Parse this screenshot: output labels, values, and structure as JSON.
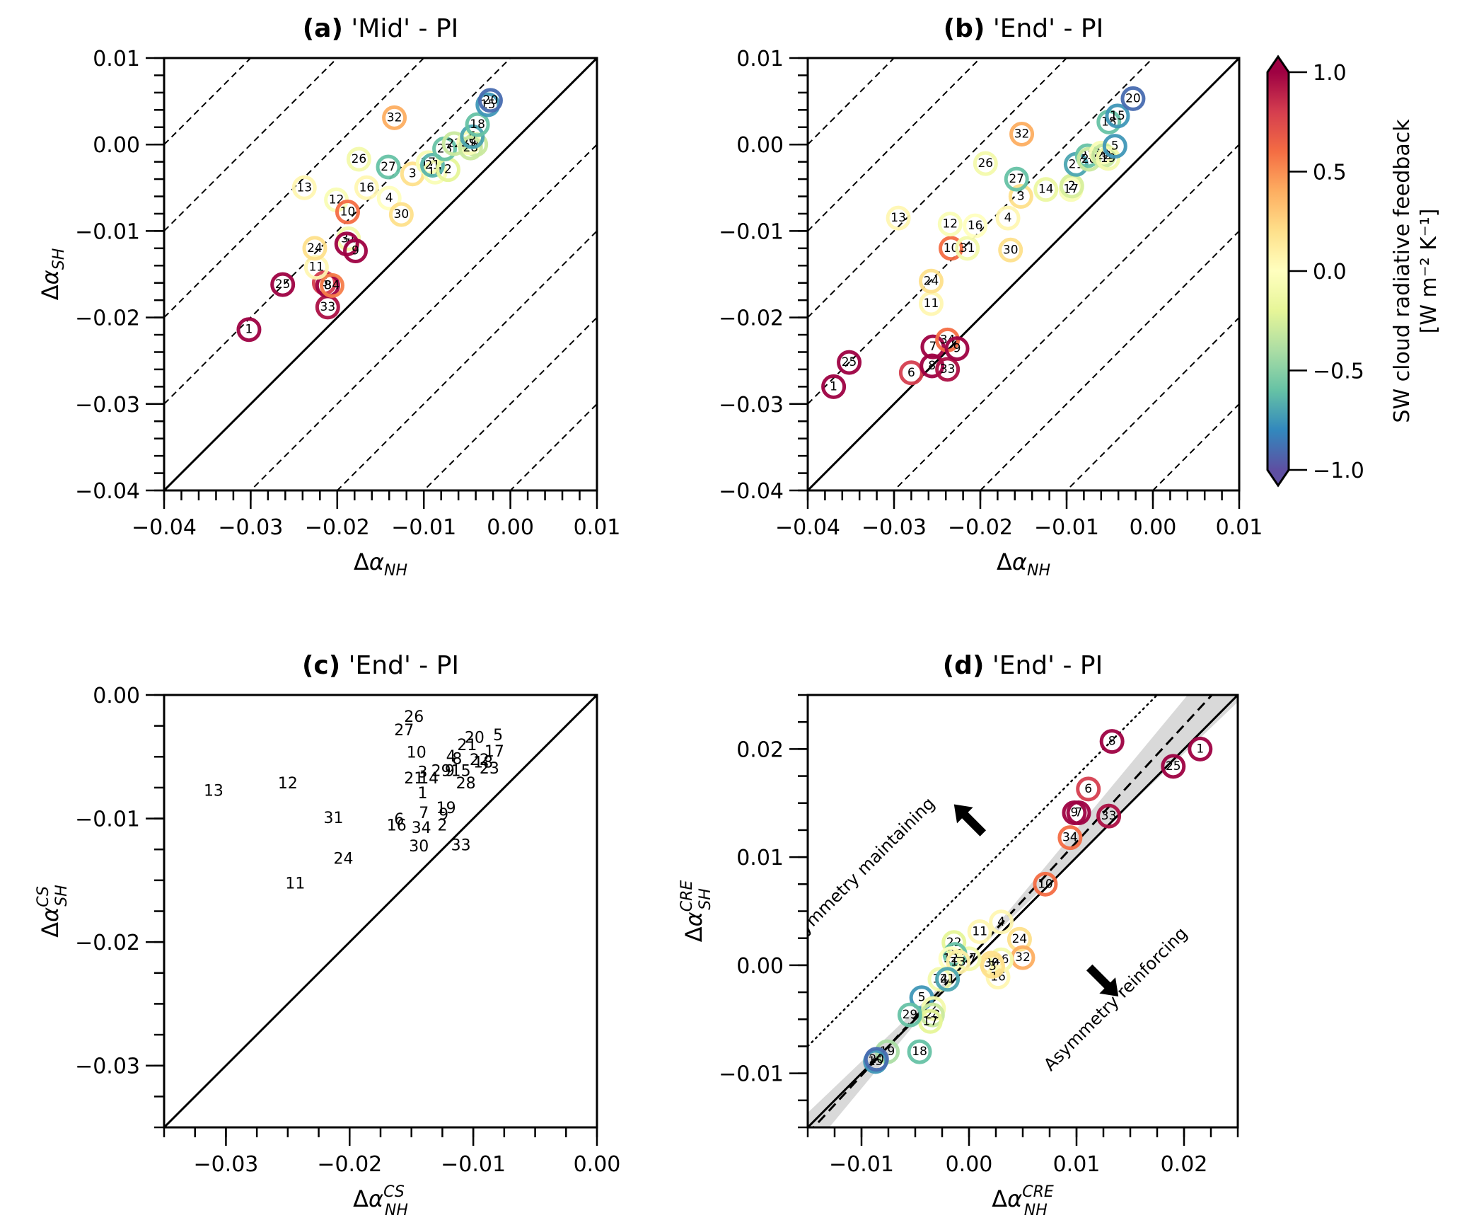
{
  "colorbar": {
    "label_line1": "SW cloud radiative feedback",
    "label_line2": "[W m⁻² K⁻¹]",
    "range": [
      -1.0,
      1.0
    ],
    "ticks": [
      "1.0",
      "0.5",
      "0.0",
      "−0.5",
      "−1.0"
    ],
    "tick_values": [
      1.0,
      0.5,
      0.0,
      -0.5,
      -1.0
    ],
    "colormap": "Spectral_r",
    "extend": "both"
  },
  "chart_data": [
    {
      "id": "a",
      "type": "scatter",
      "title_bold": "(a)",
      "title_rest": " 'Mid' - PI",
      "xlabel": "Δα_NH",
      "ylabel": "Δα_SH",
      "xlim": [
        -0.04,
        0.01
      ],
      "ylim": [
        -0.04,
        0.01
      ],
      "xticks": [
        -0.04,
        -0.03,
        -0.02,
        -0.01,
        0.0,
        0.01
      ],
      "xtick_labels": [
        "−0.04",
        "−0.03",
        "−0.02",
        "−0.01",
        "0.00",
        "0.01"
      ],
      "yticks": [
        -0.04,
        -0.03,
        -0.02,
        -0.01,
        0.0,
        0.01
      ],
      "ytick_labels": [
        "−0.04",
        "−0.03",
        "−0.02",
        "−0.01",
        "0.00",
        "0.01"
      ],
      "one_to_one_line": true,
      "dashed_offsets": [
        -0.04,
        -0.03,
        -0.02,
        -0.01,
        0.01,
        0.02,
        0.03,
        0.04
      ],
      "marker": "ring",
      "points": [
        {
          "label": "1",
          "x": -0.0302,
          "y": -0.0214,
          "c": 1.0
        },
        {
          "label": "25",
          "x": -0.0263,
          "y": -0.0162,
          "c": 1.0
        },
        {
          "label": "33",
          "x": -0.0211,
          "y": -0.0188,
          "c": 0.95
        },
        {
          "label": "6",
          "x": -0.0215,
          "y": -0.016,
          "c": 0.8
        },
        {
          "label": "8",
          "x": -0.0211,
          "y": -0.0163,
          "c": 1.0
        },
        {
          "label": "34",
          "x": -0.0206,
          "y": -0.0163,
          "c": 0.55
        },
        {
          "label": "11",
          "x": -0.0224,
          "y": -0.0142,
          "c": 0.05
        },
        {
          "label": "24",
          "x": -0.0226,
          "y": -0.012,
          "c": 0.2
        },
        {
          "label": "31",
          "x": -0.0187,
          "y": -0.0109,
          "c": -0.1
        },
        {
          "label": "7",
          "x": -0.0189,
          "y": -0.0115,
          "c": 1.0
        },
        {
          "label": "9",
          "x": -0.0179,
          "y": -0.0123,
          "c": 1.0
        },
        {
          "label": "12",
          "x": -0.0201,
          "y": -0.0064,
          "c": -0.05
        },
        {
          "label": "10",
          "x": -0.0188,
          "y": -0.0078,
          "c": 0.6
        },
        {
          "label": "13",
          "x": -0.0238,
          "y": -0.005,
          "c": 0.05
        },
        {
          "label": "16",
          "x": -0.0166,
          "y": -0.005,
          "c": 0.05
        },
        {
          "label": "4",
          "x": -0.014,
          "y": -0.0062,
          "c": 0.0
        },
        {
          "label": "30",
          "x": -0.0126,
          "y": -0.0081,
          "c": 0.2
        },
        {
          "label": "26",
          "x": -0.0175,
          "y": -0.0017,
          "c": -0.1
        },
        {
          "label": "27",
          "x": -0.0141,
          "y": -0.0026,
          "c": -0.6
        },
        {
          "label": "3",
          "x": -0.0113,
          "y": -0.0034,
          "c": 0.2
        },
        {
          "label": "32",
          "x": -0.0134,
          "y": 0.0031,
          "c": 0.4
        },
        {
          "label": "17",
          "x": -0.0095,
          "y": -0.0021,
          "c": -0.05
        },
        {
          "label": "14",
          "x": -0.0087,
          "y": -0.0032,
          "c": -0.05
        },
        {
          "label": "21",
          "x": -0.009,
          "y": -0.0024,
          "c": -0.65
        },
        {
          "label": "2",
          "x": -0.0072,
          "y": -0.0029,
          "c": -0.2
        },
        {
          "label": "23",
          "x": -0.0076,
          "y": -0.0005,
          "c": -0.6
        },
        {
          "label": "22",
          "x": -0.0065,
          "y": 0.0001,
          "c": -0.3
        },
        {
          "label": "19",
          "x": -0.004,
          "y": 0.0,
          "c": -0.3
        },
        {
          "label": "29",
          "x": -0.0048,
          "y": 0.0002,
          "c": -0.05
        },
        {
          "label": "28",
          "x": -0.0046,
          "y": -0.0004,
          "c": -0.3
        },
        {
          "label": "5",
          "x": -0.0044,
          "y": 0.0009,
          "c": -0.7
        },
        {
          "label": "18",
          "x": -0.0038,
          "y": 0.0023,
          "c": -0.6
        },
        {
          "label": "15",
          "x": -0.0026,
          "y": 0.0046,
          "c": -0.75
        },
        {
          "label": "20",
          "x": -0.0023,
          "y": 0.0051,
          "c": -0.9
        }
      ]
    },
    {
      "id": "b",
      "type": "scatter",
      "title_bold": "(b)",
      "title_rest": " 'End' - PI",
      "xlabel": "Δα_NH",
      "ylabel": "",
      "xlim": [
        -0.04,
        0.01
      ],
      "ylim": [
        -0.04,
        0.01
      ],
      "xticks": [
        -0.04,
        -0.03,
        -0.02,
        -0.01,
        0.0,
        0.01
      ],
      "xtick_labels": [
        "−0.04",
        "−0.03",
        "−0.02",
        "−0.01",
        "0.00",
        "0.01"
      ],
      "yticks": [
        -0.04,
        -0.03,
        -0.02,
        -0.01,
        0.0,
        0.01
      ],
      "ytick_labels": [
        "−0.04",
        "−0.03",
        "−0.02",
        "−0.01",
        "0.00",
        "0.01"
      ],
      "one_to_one_line": true,
      "dashed_offsets": [
        -0.04,
        -0.03,
        -0.02,
        -0.01,
        0.01,
        0.02,
        0.03,
        0.04
      ],
      "marker": "ring",
      "points": [
        {
          "label": "1",
          "x": -0.037,
          "y": -0.028,
          "c": 1.0
        },
        {
          "label": "25",
          "x": -0.0352,
          "y": -0.0252,
          "c": 1.0
        },
        {
          "label": "6",
          "x": -0.028,
          "y": -0.0264,
          "c": 0.8
        },
        {
          "label": "8",
          "x": -0.0256,
          "y": -0.0256,
          "c": 1.0
        },
        {
          "label": "33",
          "x": -0.0238,
          "y": -0.026,
          "c": 0.95
        },
        {
          "label": "7",
          "x": -0.0255,
          "y": -0.0234,
          "c": 1.0
        },
        {
          "label": "34",
          "x": -0.0238,
          "y": -0.0226,
          "c": 0.6
        },
        {
          "label": "9",
          "x": -0.0227,
          "y": -0.0236,
          "c": 1.0
        },
        {
          "label": "11",
          "x": -0.0257,
          "y": -0.0184,
          "c": 0.05
        },
        {
          "label": "24",
          "x": -0.0257,
          "y": -0.0158,
          "c": 0.2
        },
        {
          "label": "10",
          "x": -0.0234,
          "y": -0.012,
          "c": 0.6
        },
        {
          "label": "31",
          "x": -0.0215,
          "y": -0.012,
          "c": -0.1
        },
        {
          "label": "30",
          "x": -0.0165,
          "y": -0.0122,
          "c": 0.2
        },
        {
          "label": "12",
          "x": -0.0235,
          "y": -0.0092,
          "c": -0.05
        },
        {
          "label": "16",
          "x": -0.0206,
          "y": -0.0094,
          "c": 0.0
        },
        {
          "label": "4",
          "x": -0.0168,
          "y": -0.0085,
          "c": 0.05
        },
        {
          "label": "13",
          "x": -0.0295,
          "y": -0.0085,
          "c": 0.05
        },
        {
          "label": "3",
          "x": -0.0153,
          "y": -0.006,
          "c": 0.2
        },
        {
          "label": "14",
          "x": -0.0124,
          "y": -0.0052,
          "c": -0.15
        },
        {
          "label": "17",
          "x": -0.0095,
          "y": -0.0052,
          "c": -0.05
        },
        {
          "label": "2",
          "x": -0.0094,
          "y": -0.0048,
          "c": -0.25
        },
        {
          "label": "27",
          "x": -0.0158,
          "y": -0.004,
          "c": -0.6
        },
        {
          "label": "26",
          "x": -0.0194,
          "y": -0.0022,
          "c": -0.1
        },
        {
          "label": "32",
          "x": -0.0152,
          "y": 0.0012,
          "c": 0.4
        },
        {
          "label": "21",
          "x": -0.0089,
          "y": -0.0023,
          "c": -0.7
        },
        {
          "label": "23",
          "x": -0.0076,
          "y": -0.0013,
          "c": -0.6
        },
        {
          "label": "28",
          "x": -0.0074,
          "y": -0.0017,
          "c": -0.3
        },
        {
          "label": "29",
          "x": -0.006,
          "y": -0.001,
          "c": -0.05
        },
        {
          "label": "22",
          "x": -0.0057,
          "y": -0.0013,
          "c": -0.3
        },
        {
          "label": "19",
          "x": -0.0052,
          "y": -0.0016,
          "c": -0.1
        },
        {
          "label": "5",
          "x": -0.0044,
          "y": -0.0002,
          "c": -0.75
        },
        {
          "label": "18",
          "x": -0.0051,
          "y": 0.0026,
          "c": -0.6
        },
        {
          "label": "15",
          "x": -0.0041,
          "y": 0.0033,
          "c": -0.75
        },
        {
          "label": "20",
          "x": -0.0023,
          "y": 0.0053,
          "c": -0.9
        }
      ]
    },
    {
      "id": "c",
      "type": "scatter",
      "title_bold": "(c)",
      "title_rest": " 'End' - PI",
      "xlabel": "Δα_NH^CS",
      "ylabel": "Δα_SH^CS",
      "xlim": [
        -0.035,
        0.0
      ],
      "ylim": [
        -0.035,
        0.0
      ],
      "xticks": [
        -0.03,
        -0.02,
        -0.01,
        0.0
      ],
      "xtick_labels": [
        "−0.03",
        "−0.02",
        "−0.01",
        "0.00"
      ],
      "yticks": [
        -0.03,
        -0.02,
        -0.01,
        0.0
      ],
      "ytick_labels": [
        "−0.03",
        "−0.02",
        "−0.01",
        "0.00"
      ],
      "one_to_one_line": true,
      "marker": "text",
      "points": [
        {
          "label": "13",
          "x": -0.031,
          "y": -0.0078
        },
        {
          "label": "12",
          "x": -0.025,
          "y": -0.0072
        },
        {
          "label": "31",
          "x": -0.0213,
          "y": -0.01
        },
        {
          "label": "24",
          "x": -0.0205,
          "y": -0.0133
        },
        {
          "label": "11",
          "x": -0.0244,
          "y": -0.0153
        },
        {
          "label": "26",
          "x": -0.0148,
          "y": -0.0018
        },
        {
          "label": "27",
          "x": -0.0156,
          "y": -0.0029
        },
        {
          "label": "10",
          "x": -0.0146,
          "y": -0.0047
        },
        {
          "label": "3",
          "x": -0.0141,
          "y": -0.0063
        },
        {
          "label": "21",
          "x": -0.0148,
          "y": -0.0068
        },
        {
          "label": "14",
          "x": -0.0136,
          "y": -0.0068
        },
        {
          "label": "1",
          "x": -0.0141,
          "y": -0.008
        },
        {
          "label": "29",
          "x": -0.0126,
          "y": -0.0062
        },
        {
          "label": "4",
          "x": -0.0118,
          "y": -0.005
        },
        {
          "label": "8",
          "x": -0.0113,
          "y": -0.0052
        },
        {
          "label": "9",
          "x": -0.0119,
          "y": -0.0062
        },
        {
          "label": "15",
          "x": -0.011,
          "y": -0.0062
        },
        {
          "label": "28",
          "x": -0.0106,
          "y": -0.0072
        },
        {
          "label": "21b",
          "x": -0.0105,
          "y": -0.0041
        },
        {
          "label": "20",
          "x": -0.0099,
          "y": -0.0035
        },
        {
          "label": "5",
          "x": -0.008,
          "y": -0.0033
        },
        {
          "label": "17",
          "x": -0.0083,
          "y": -0.0046
        },
        {
          "label": "22",
          "x": -0.0095,
          "y": -0.0053
        },
        {
          "label": "18",
          "x": -0.0092,
          "y": -0.0055
        },
        {
          "label": "23",
          "x": -0.0087,
          "y": -0.006
        },
        {
          "label": "19",
          "x": -0.0122,
          "y": -0.0092
        },
        {
          "label": "9b",
          "x": -0.0124,
          "y": -0.0097
        },
        {
          "label": "7",
          "x": -0.014,
          "y": -0.0096
        },
        {
          "label": "6",
          "x": -0.016,
          "y": -0.0101
        },
        {
          "label": "16",
          "x": -0.0162,
          "y": -0.0106
        },
        {
          "label": "34",
          "x": -0.0142,
          "y": -0.0108
        },
        {
          "label": "2",
          "x": -0.0125,
          "y": -0.0106
        },
        {
          "label": "30",
          "x": -0.0144,
          "y": -0.0123
        },
        {
          "label": "33",
          "x": -0.011,
          "y": -0.0122
        }
      ]
    },
    {
      "id": "d",
      "type": "scatter",
      "title_bold": "(d)",
      "title_rest": " 'End' - PI",
      "xlabel": "Δα_NH^CRE",
      "ylabel": "Δα_SH^CRE",
      "xlim": [
        -0.015,
        0.025
      ],
      "ylim": [
        -0.015,
        0.025
      ],
      "xticks": [
        -0.01,
        0.0,
        0.01,
        0.02
      ],
      "xtick_labels": [
        "−0.01",
        "0.00",
        "0.01",
        "0.02"
      ],
      "yticks": [
        -0.01,
        0.0,
        0.01,
        0.02
      ],
      "ytick_labels": [
        "−0.01",
        "0.00",
        "0.01",
        "0.02"
      ],
      "one_to_one_line": true,
      "regression_line": {
        "slope": 1.08,
        "intercept": 0.0006,
        "style": "dashed"
      },
      "confidence_band": {
        "slope_low": 0.95,
        "slope_high": 1.2,
        "intercept": 0.0006
      },
      "dotted_line": {
        "slope": 1.0,
        "offset": 0.0075
      },
      "annotations": [
        {
          "text": "Symmetry maintaining",
          "x": -0.0095,
          "y": 0.0085,
          "rotation": -45
        },
        {
          "text": "Asymmetry reinforcing",
          "x": 0.014,
          "y": -0.0035,
          "rotation": -45
        }
      ],
      "arrows": [
        {
          "direction": "up-left",
          "x": 0.0,
          "y": 0.0135
        },
        {
          "direction": "down-right",
          "x": 0.0125,
          "y": -0.0015
        }
      ],
      "marker": "ring",
      "points": [
        {
          "label": "1",
          "x": 0.0215,
          "y": 0.02,
          "c": 1.0
        },
        {
          "label": "25",
          "x": 0.019,
          "y": 0.0184,
          "c": 1.0
        },
        {
          "label": "8",
          "x": 0.0133,
          "y": 0.0207,
          "c": 1.0
        },
        {
          "label": "6",
          "x": 0.0111,
          "y": 0.0163,
          "c": 0.8
        },
        {
          "label": "9",
          "x": 0.0098,
          "y": 0.0141,
          "c": 1.0
        },
        {
          "label": "7",
          "x": 0.0102,
          "y": 0.0141,
          "c": 1.0
        },
        {
          "label": "33",
          "x": 0.013,
          "y": 0.0138,
          "c": 0.95
        },
        {
          "label": "34",
          "x": 0.0094,
          "y": 0.0118,
          "c": 0.6
        },
        {
          "label": "10",
          "x": 0.0071,
          "y": 0.0075,
          "c": 0.6
        },
        {
          "label": "4",
          "x": 0.003,
          "y": 0.004,
          "c": 0.05
        },
        {
          "label": "11",
          "x": 0.001,
          "y": 0.0031,
          "c": 0.05
        },
        {
          "label": "24",
          "x": 0.0047,
          "y": 0.0024,
          "c": 0.2
        },
        {
          "label": "32",
          "x": 0.005,
          "y": 0.0007,
          "c": 0.4
        },
        {
          "label": "26",
          "x": 0.003,
          "y": 0.0005,
          "c": -0.1
        },
        {
          "label": "30",
          "x": 0.0021,
          "y": 0.0002,
          "c": 0.2
        },
        {
          "label": "16",
          "x": 0.0027,
          "y": -0.0011,
          "c": 0.05
        },
        {
          "label": "3",
          "x": 0.0022,
          "y": -0.0001,
          "c": 0.2
        },
        {
          "label": "27",
          "x": 0.0,
          "y": 0.0006,
          "c": -0.1
        },
        {
          "label": "22",
          "x": -0.0014,
          "y": 0.0021,
          "c": -0.2
        },
        {
          "label": "23",
          "x": -0.0013,
          "y": 0.001,
          "c": -0.6
        },
        {
          "label": "12",
          "x": -0.0017,
          "y": 0.0006,
          "c": 0.0
        },
        {
          "label": "13",
          "x": -0.001,
          "y": 0.0003,
          "c": 0.1
        },
        {
          "label": "14",
          "x": -0.0027,
          "y": -0.0013,
          "c": -0.1
        },
        {
          "label": "21",
          "x": -0.002,
          "y": -0.0013,
          "c": -0.7
        },
        {
          "label": "5",
          "x": -0.0044,
          "y": -0.003,
          "c": -0.75
        },
        {
          "label": "2",
          "x": -0.0033,
          "y": -0.004,
          "c": -0.1
        },
        {
          "label": "28",
          "x": -0.0034,
          "y": -0.0046,
          "c": -0.3
        },
        {
          "label": "17",
          "x": -0.0036,
          "y": -0.0052,
          "c": -0.2
        },
        {
          "label": "29",
          "x": -0.0055,
          "y": -0.0046,
          "c": -0.6
        },
        {
          "label": "19",
          "x": -0.0076,
          "y": -0.008,
          "c": -0.4
        },
        {
          "label": "18",
          "x": -0.0046,
          "y": -0.008,
          "c": -0.6
        },
        {
          "label": "15",
          "x": -0.0087,
          "y": -0.0089,
          "c": -0.75
        },
        {
          "label": "20",
          "x": -0.0086,
          "y": -0.0087,
          "c": -0.9
        }
      ]
    }
  ]
}
